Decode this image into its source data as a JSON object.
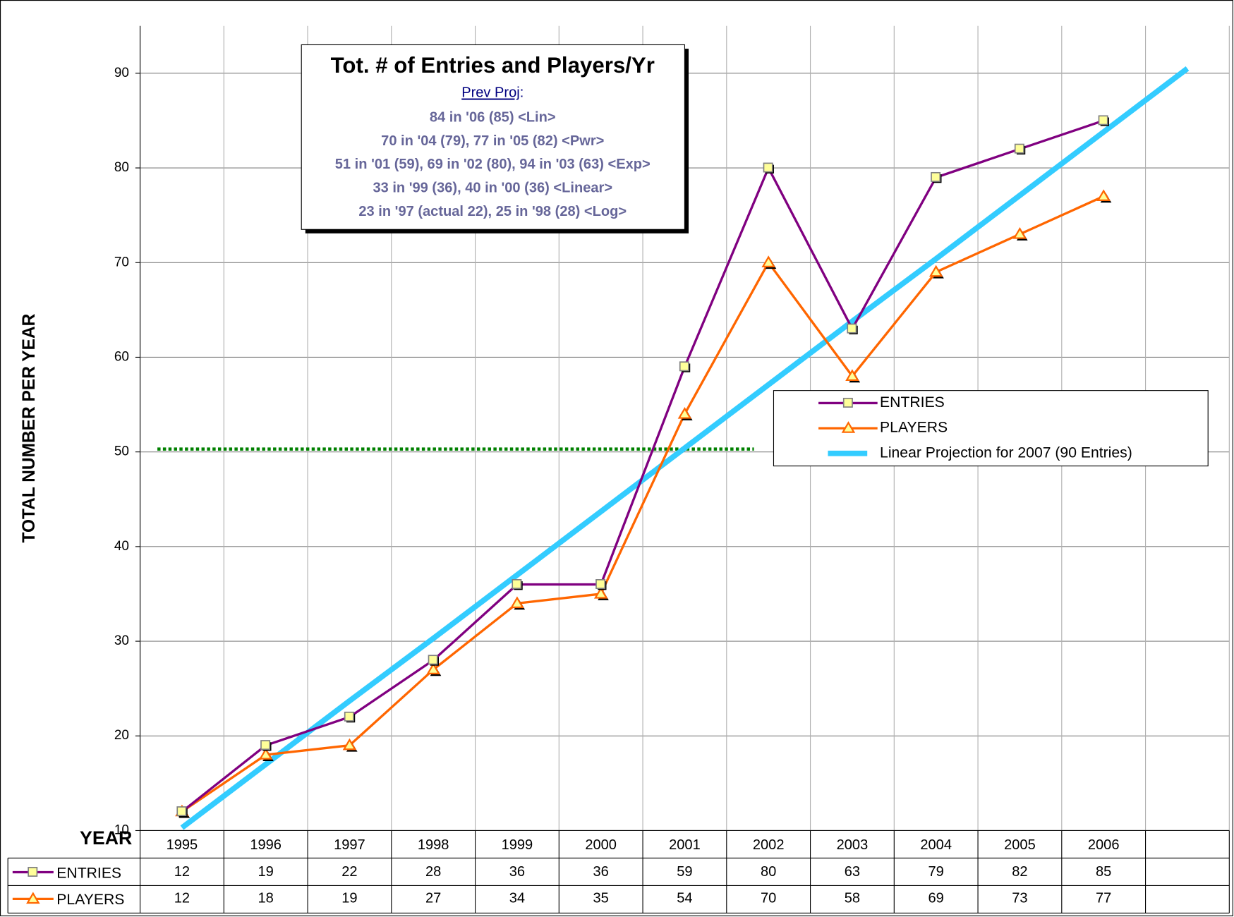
{
  "chart_data": {
    "type": "line",
    "title": "Tot. # of Entries and Players/Yr",
    "subtitle": "Prev Proj",
    "subtitle_suffix": ":",
    "notes": [
      "84 in '06 (85) <Lin>",
      "70 in '04 (79), 77 in '05 (82) <Pwr>",
      "51 in '01 (59),  69 in '02 (80), 94 in '03 (63) <Exp>",
      "33 in '99 (36),  40 in '00 (36)  <Linear>",
      "23 in '97 (actual 22),  25 in '98 (28)  <Log>"
    ],
    "y_label": "TOTAL NUMBER PER YEAR",
    "x_label": "YEAR",
    "categories": [
      "1995",
      "1996",
      "1997",
      "1998",
      "1999",
      "2000",
      "2001",
      "2002",
      "2003",
      "2004",
      "2005",
      "2006",
      null
    ],
    "series": [
      {
        "name": "ENTRIES",
        "color": "#800080",
        "values": [
          12,
          19,
          22,
          28,
          36,
          36,
          59,
          80,
          63,
          79,
          82,
          85,
          null
        ]
      },
      {
        "name": "PLAYERS",
        "color": "#FF6600",
        "values": [
          12,
          18,
          19,
          27,
          34,
          35,
          54,
          70,
          58,
          69,
          73,
          77,
          null
        ]
      },
      {
        "name": "Linear Projection for 2007 (90 Entries)",
        "color": "#33CCFF",
        "values": [
          10.3,
          17.0,
          23.7,
          30.3,
          37.0,
          43.7,
          50.4,
          57.1,
          63.8,
          70.4,
          77.1,
          83.8,
          90.5
        ]
      }
    ],
    "reference_line": {
      "value": 50.3,
      "color": "#008000"
    },
    "ylim": [
      10,
      95
    ],
    "yticks": [
      10,
      20,
      30,
      40,
      50,
      60,
      70,
      80,
      90
    ],
    "grid": true,
    "legend": "right"
  }
}
